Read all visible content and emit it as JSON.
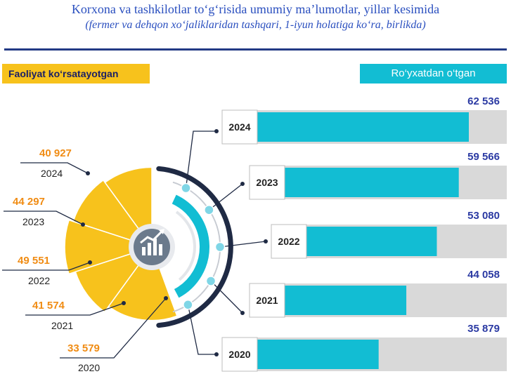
{
  "header": {
    "title": "Korxona va tashkilotlar to‘g‘risida umumiy ma’lumotlar, yillar kesimida",
    "subtitle": "(fermer va dehqon xo‘jaliklaridan tashqari, 1-iyun holatiga ko‘ra, birlikda)"
  },
  "legend": {
    "left_label": "Faoliyat ko‘rsatayotgan",
    "right_label": "Ro‘yxatdan o‘tgan"
  },
  "colors": {
    "active": "#f7c21c",
    "registered": "#12bdd3",
    "track": "#d9d9d9",
    "dark": "#1f2a44",
    "active_value_text": "#f08c14",
    "registered_value_text": "#2b3aa3"
  },
  "icon": "chart-growth-icon",
  "chart_data": {
    "type": "bar",
    "categories": [
      "2024",
      "2023",
      "2022",
      "2021",
      "2020"
    ],
    "series": [
      {
        "name": "Ro‘yxatdan o‘tgan",
        "values": [
          62536,
          59566,
          53080,
          44058,
          35879
        ],
        "labels": [
          "62 536",
          "59 566",
          "53 080",
          "44 058",
          "35 879"
        ]
      },
      {
        "name": "Faoliyat ko‘rsatayotgan",
        "values": [
          40927,
          44297,
          49551,
          41574,
          33579
        ],
        "labels": [
          "40 927",
          "44 297",
          "49 551",
          "41 574",
          "33 579"
        ]
      }
    ]
  }
}
